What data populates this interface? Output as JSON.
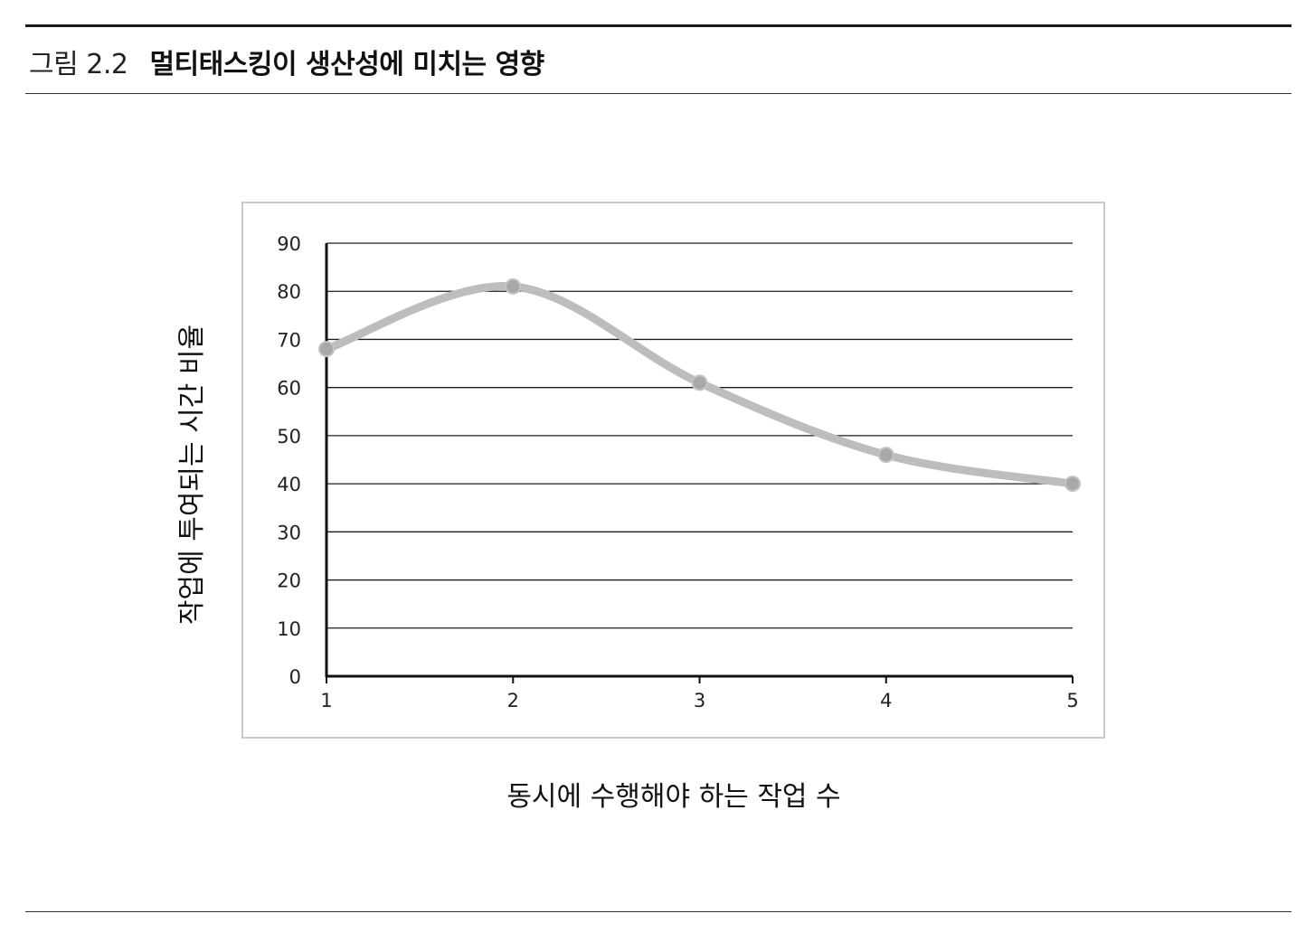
{
  "figure": {
    "label": "그림 2.2",
    "title": "멀티태스킹이 생산성에 미치는 영향"
  },
  "chart_data": {
    "type": "line",
    "title": "멀티태스킹이 생산성에 미치는 영향",
    "xlabel": "동시에 수행해야 하는 작업 수",
    "ylabel": "작업에 투여되는 시간 비율",
    "x": [
      1,
      2,
      3,
      4,
      5
    ],
    "x_tick_labels": [
      "1",
      "2",
      "3",
      "4",
      "5"
    ],
    "y_tick_labels": [
      "0",
      "10",
      "20",
      "30",
      "40",
      "50",
      "60",
      "70",
      "80",
      "90"
    ],
    "ylim": [
      0,
      90
    ],
    "grid": true,
    "series": [
      {
        "name": "작업에 투여되는 시간 비율",
        "values": [
          68,
          81,
          61,
          46,
          40
        ],
        "color": "#bdbdbd",
        "smooth": true
      }
    ]
  }
}
